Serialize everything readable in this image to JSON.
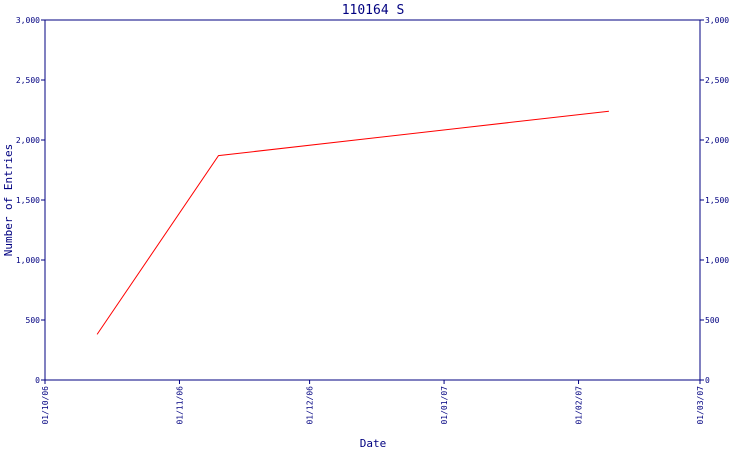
{
  "chart_data": {
    "type": "line",
    "title": "110164 S",
    "xlabel": "Date",
    "ylabel": "Number of Entries",
    "x_ticks": [
      "01/10/06",
      "01/11/06",
      "01/12/06",
      "01/01/07",
      "01/02/07",
      "01/03/07"
    ],
    "y_ticks": [
      "0",
      "500",
      "1,000",
      "1,500",
      "2,000",
      "2,500",
      "3,000"
    ],
    "xlim": [
      "2006-10-01",
      "2007-03-01"
    ],
    "ylim": [
      0,
      3000
    ],
    "grid": false,
    "right_axis": true,
    "series": [
      {
        "color": "#ff0000",
        "points": [
          {
            "x": "2006-10-13",
            "y": 380
          },
          {
            "x": "2006-11-10",
            "y": 1870
          },
          {
            "x": "2007-02-08",
            "y": 2240
          }
        ]
      }
    ]
  },
  "colors": {
    "axis": "#000080",
    "background": "#ffffff"
  }
}
